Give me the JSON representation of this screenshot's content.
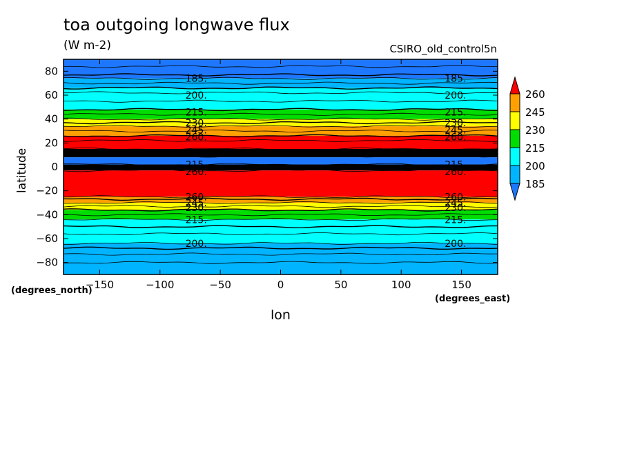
{
  "header": {
    "title": "toa outgoing longwave flux",
    "units": "(W m-2)",
    "run": "CSIRO_old_control5n"
  },
  "axes": {
    "xlabel": "lon",
    "ylabel": "latitude",
    "x_units_left": "(degrees_north)",
    "x_units_right": "(degrees_east)"
  },
  "colors": {
    "c185": "#1e78ff",
    "c200": "#00b4ff",
    "c215": "#00ffff",
    "c230": "#00dd00",
    "c245": "#ffff00",
    "c260": "#ffa000",
    "cmax": "#ff0000",
    "dark": "#000000"
  },
  "chart_data": {
    "type": "heatmap",
    "title": "toa outgoing longwave flux",
    "subtitle": "(W m-2)",
    "annotation": "CSIRO_old_control5n",
    "xlabel": "lon",
    "ylabel": "latitude",
    "xlim": [
      -180,
      180
    ],
    "ylim": [
      -90,
      90
    ],
    "xticks": [
      -150,
      -100,
      -50,
      0,
      50,
      100,
      150
    ],
    "yticks": [
      -80,
      -60,
      -40,
      -20,
      0,
      20,
      40,
      60,
      80
    ],
    "grid": false,
    "colorbar": {
      "levels": [
        185,
        200,
        215,
        230,
        245,
        260
      ],
      "colors": [
        "#1e78ff",
        "#00b4ff",
        "#00ffff",
        "#00dd00",
        "#ffff00",
        "#ffa000",
        "#ff0000"
      ],
      "extend": "both"
    },
    "bands": [
      {
        "lat_min": 74,
        "lat_max": 90,
        "color": "#1e78ff"
      },
      {
        "lat_min": 66,
        "lat_max": 74,
        "color": "#00b4ff"
      },
      {
        "lat_min": 48,
        "lat_max": 66,
        "color": "#00ffff"
      },
      {
        "lat_min": 40,
        "lat_max": 48,
        "color": "#00dd00"
      },
      {
        "lat_min": 34,
        "lat_max": 40,
        "color": "#ffff00"
      },
      {
        "lat_min": 26,
        "lat_max": 34,
        "color": "#ffa000"
      },
      {
        "lat_min": 15,
        "lat_max": 26,
        "color": "#ff0000"
      },
      {
        "lat_min": 8,
        "lat_max": 15,
        "color": "#000000"
      },
      {
        "lat_min": 2,
        "lat_max": 8,
        "color": "#1e78ff"
      },
      {
        "lat_min": -3,
        "lat_max": 2,
        "color": "#000000"
      },
      {
        "lat_min": -25,
        "lat_max": -3,
        "color": "#ff0000"
      },
      {
        "lat_min": -30,
        "lat_max": -25,
        "color": "#ffa000"
      },
      {
        "lat_min": -36,
        "lat_max": -30,
        "color": "#ffff00"
      },
      {
        "lat_min": -44,
        "lat_max": -36,
        "color": "#00dd00"
      },
      {
        "lat_min": -64,
        "lat_max": -44,
        "color": "#00ffff"
      },
      {
        "lat_min": -73,
        "lat_max": -64,
        "color": "#00b4ff"
      },
      {
        "lat_min": -90,
        "lat_max": -73,
        "color": "#00b4ff"
      }
    ],
    "contour_lines_lat": [
      84,
      77,
      74,
      70,
      66,
      62,
      55,
      48,
      44,
      40,
      37,
      34,
      30,
      26,
      22,
      15,
      12,
      9,
      2,
      0,
      -3,
      -25,
      -27,
      -30,
      -33,
      -36,
      -40,
      -44,
      -50,
      -56,
      -64,
      -68,
      -73,
      -80
    ],
    "contour_labels": [
      {
        "text": "185.",
        "lon": -70,
        "lat": 74
      },
      {
        "text": "185.",
        "lon": 145,
        "lat": 74
      },
      {
        "text": "200.",
        "lon": -70,
        "lat": 60
      },
      {
        "text": "200.",
        "lon": 145,
        "lat": 60
      },
      {
        "text": "215.",
        "lon": -70,
        "lat": 46
      },
      {
        "text": "215.",
        "lon": 145,
        "lat": 46
      },
      {
        "text": "230.",
        "lon": -70,
        "lat": 37
      },
      {
        "text": "230.",
        "lon": 145,
        "lat": 37
      },
      {
        "text": "245.",
        "lon": -70,
        "lat": 31
      },
      {
        "text": "245.",
        "lon": 145,
        "lat": 31
      },
      {
        "text": "260.",
        "lon": -70,
        "lat": 25
      },
      {
        "text": "260.",
        "lon": 145,
        "lat": 25
      },
      {
        "text": "215.",
        "lon": -70,
        "lat": 2
      },
      {
        "text": "215.",
        "lon": 145,
        "lat": 2
      },
      {
        "text": "260.",
        "lon": -70,
        "lat": -4
      },
      {
        "text": "260.",
        "lon": 145,
        "lat": -4
      },
      {
        "text": "260.",
        "lon": -70,
        "lat": -25
      },
      {
        "text": "260.",
        "lon": 145,
        "lat": -25
      },
      {
        "text": "245.",
        "lon": -70,
        "lat": -30
      },
      {
        "text": "245.",
        "lon": 145,
        "lat": -30
      },
      {
        "text": "230.",
        "lon": -70,
        "lat": -34
      },
      {
        "text": "230.",
        "lon": 145,
        "lat": -34
      },
      {
        "text": "215.",
        "lon": -70,
        "lat": -44
      },
      {
        "text": "215.",
        "lon": 145,
        "lat": -44
      },
      {
        "text": "200.",
        "lon": -70,
        "lat": -64
      },
      {
        "text": "200.",
        "lon": 145,
        "lat": -64
      }
    ]
  }
}
